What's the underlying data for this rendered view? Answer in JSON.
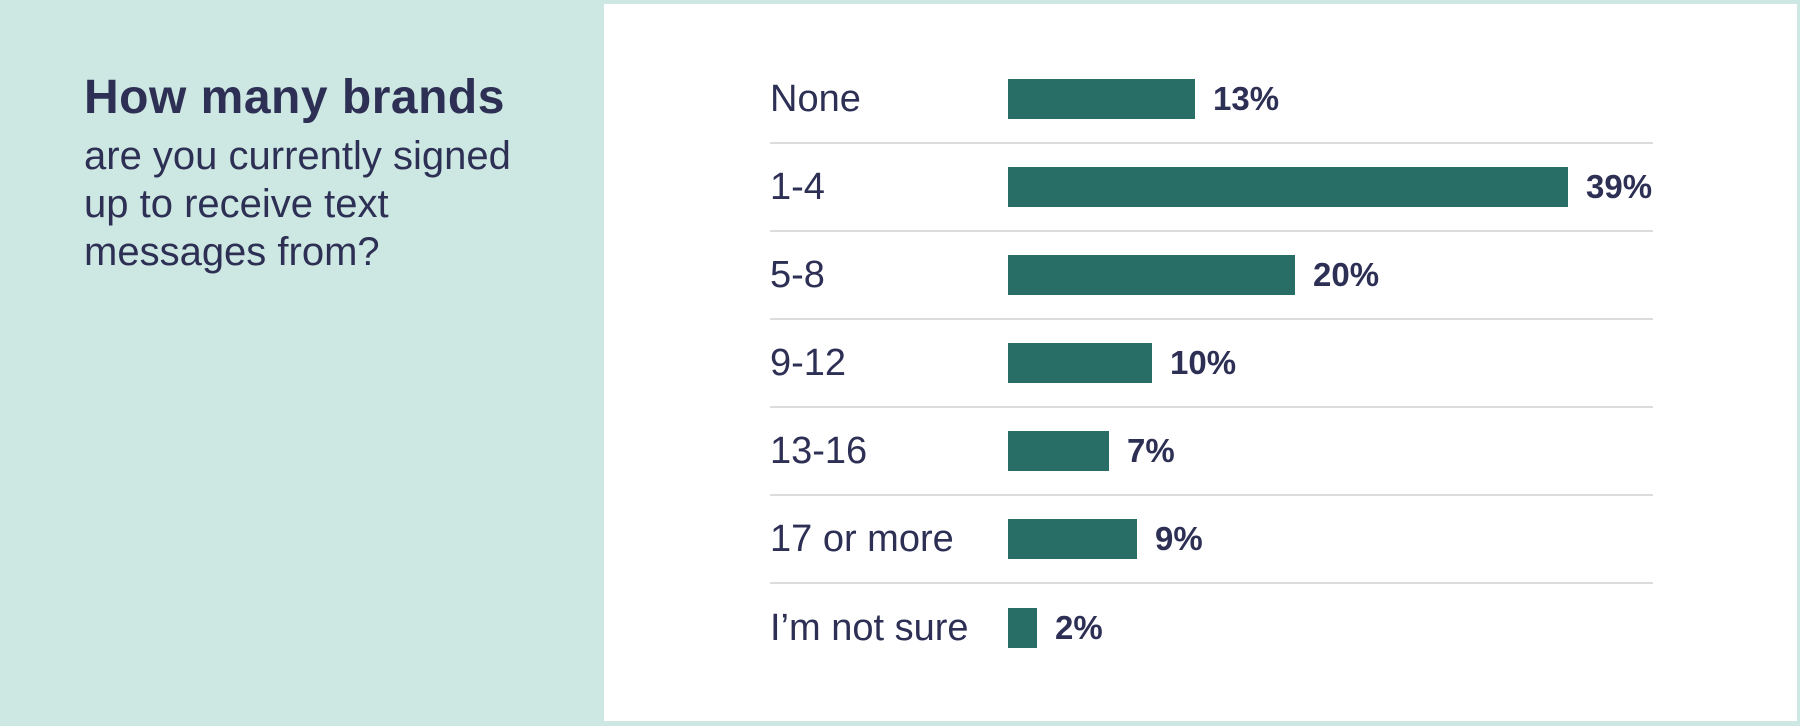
{
  "colors": {
    "mint": "#cde8e2",
    "panel": "#ffffff",
    "navy": "#2d3054",
    "teal": "#286d66",
    "separator": "#dcdcdc"
  },
  "question": {
    "title": "How many brands",
    "subtitle_lines": [
      "are you currently signed",
      "up to receive text",
      "messages from?"
    ]
  },
  "chart_data": {
    "type": "bar",
    "orientation": "horizontal",
    "title": "How many brands are you currently signed up to receive text messages from?",
    "categories": [
      "None",
      "1-4",
      "5-8",
      "9-12",
      "13-16",
      "17 or more",
      "I’m not sure"
    ],
    "values": [
      13,
      39,
      20,
      10,
      7,
      9,
      2
    ],
    "value_labels": [
      "13%",
      "39%",
      "20%",
      "10%",
      "7%",
      "9%",
      "2%"
    ],
    "xlabel": "",
    "ylabel": "",
    "xlim": [
      0,
      39
    ],
    "grid": false,
    "legend": false,
    "row_separators": true,
    "bar_color": "#286d66"
  }
}
